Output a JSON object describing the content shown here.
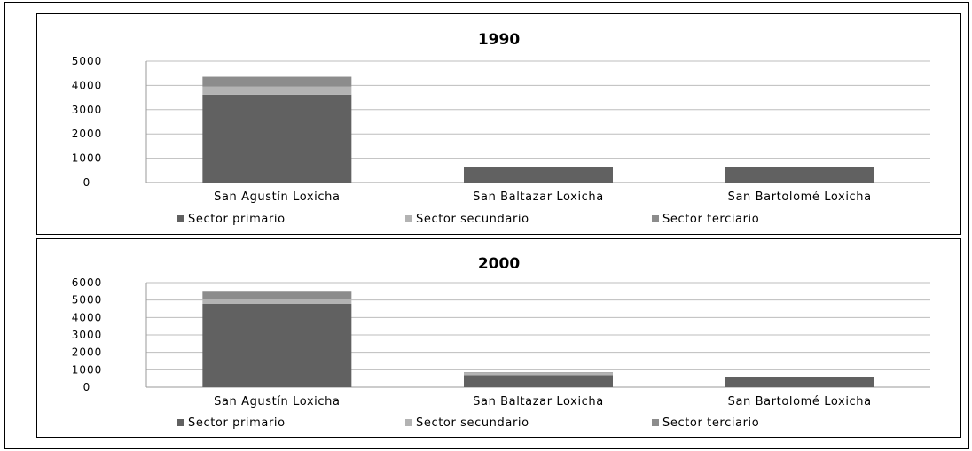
{
  "chart_data": [
    {
      "type": "bar",
      "stacked": true,
      "title": "1990",
      "categories": [
        "San Agustín Loxicha",
        "San Baltazar Loxicha",
        "San Bartolomé Loxicha"
      ],
      "series": [
        {
          "name": "Sector primario",
          "values": [
            3620,
            620,
            630
          ],
          "color": "#616161"
        },
        {
          "name": "Sector secundario",
          "values": [
            330,
            0,
            0
          ],
          "color": "#b3b3b3"
        },
        {
          "name": "Sector terciario",
          "values": [
            410,
            0,
            0
          ],
          "color": "#8c8c8c"
        }
      ],
      "ylim": [
        0,
        5000
      ],
      "yticks": [
        0,
        1000,
        2000,
        3000,
        4000,
        5000
      ],
      "grid": true,
      "legend_position": "bottom"
    },
    {
      "type": "bar",
      "stacked": true,
      "title": "2000",
      "categories": [
        "San Agustín Loxicha",
        "San Baltazar Loxicha",
        "San Bartolomé Loxicha"
      ],
      "series": [
        {
          "name": "Sector primario",
          "values": [
            4780,
            690,
            580
          ],
          "color": "#616161"
        },
        {
          "name": "Sector secundario",
          "values": [
            300,
            120,
            0
          ],
          "color": "#b3b3b3"
        },
        {
          "name": "Sector terciario",
          "values": [
            450,
            40,
            0
          ],
          "color": "#8c8c8c"
        }
      ],
      "ylim": [
        0,
        6000
      ],
      "yticks": [
        0,
        1000,
        2000,
        3000,
        4000,
        5000,
        6000
      ],
      "grid": true,
      "legend_position": "bottom"
    }
  ]
}
